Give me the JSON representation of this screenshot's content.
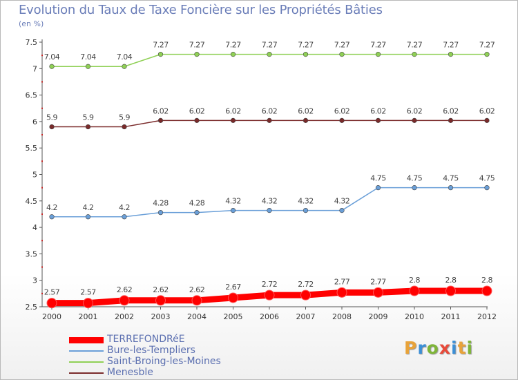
{
  "title": "Evolution du Taux de Taxe Foncière sur les Propriétés Bâties",
  "unit": "(en %)",
  "logo_text": "Proxiti",
  "logo_colors": [
    "#e8a33a",
    "#3b8fd6",
    "#7fb539",
    "#e84a3a",
    "#3b8fd6",
    "#e8a33a",
    "#7fb539"
  ],
  "chart_data": {
    "type": "line",
    "title": "Evolution du Taux de Taxe Foncière sur les Propriétés Bâties",
    "ylabel": "(en %)",
    "xlabel": "",
    "categories": [
      "2000",
      "2001",
      "2002",
      "2003",
      "2004",
      "2005",
      "2006",
      "2007",
      "2008",
      "2009",
      "2010",
      "2011",
      "2012"
    ],
    "ylim": [
      2.5,
      7.5
    ],
    "yticks": [
      "2.5",
      "3",
      "3.5",
      "4",
      "4.5",
      "5",
      "5.5",
      "6",
      "6.5",
      "7",
      "7.5"
    ],
    "grid": false,
    "series": [
      {
        "name": "TERREFONDRéE",
        "color": "#ff0000",
        "emphasis": true,
        "values": [
          2.57,
          2.57,
          2.62,
          2.62,
          2.62,
          2.67,
          2.72,
          2.72,
          2.77,
          2.77,
          2.8,
          2.8,
          2.8
        ],
        "labels": [
          "2.57",
          "2.57",
          "2.62",
          "2.62",
          "2.62",
          "2.67",
          "2.72",
          "2.72",
          "2.77",
          "2.77",
          "2.8",
          "2.8",
          "2.8"
        ]
      },
      {
        "name": "Bure-les-Templiers",
        "color": "#6a9fd8",
        "values": [
          4.2,
          4.2,
          4.2,
          4.28,
          4.28,
          4.32,
          4.32,
          4.32,
          4.32,
          4.75,
          4.75,
          4.75,
          4.75
        ],
        "labels": [
          "4.2",
          "4.2",
          "4.2",
          "4.28",
          "4.28",
          "4.32",
          "4.32",
          "4.32",
          "4.32",
          "4.75",
          "4.75",
          "4.75",
          "4.75"
        ]
      },
      {
        "name": "Saint-Broing-les-Moines",
        "color": "#8fd055",
        "values": [
          7.04,
          7.04,
          7.04,
          7.27,
          7.27,
          7.27,
          7.27,
          7.27,
          7.27,
          7.27,
          7.27,
          7.27,
          7.27
        ],
        "labels": [
          "7.04",
          "7.04",
          "7.04",
          "7.27",
          "7.27",
          "7.27",
          "7.27",
          "7.27",
          "7.27",
          "7.27",
          "7.27",
          "7.27",
          "7.27"
        ]
      },
      {
        "name": "Menesble",
        "color": "#7a2a2a",
        "values": [
          5.9,
          5.9,
          5.9,
          6.02,
          6.02,
          6.02,
          6.02,
          6.02,
          6.02,
          6.02,
          6.02,
          6.02,
          6.02
        ],
        "labels": [
          "5.9",
          "5.9",
          "5.9",
          "6.02",
          "6.02",
          "6.02",
          "6.02",
          "6.02",
          "6.02",
          "6.02",
          "6.02",
          "6.02",
          "6.02"
        ]
      }
    ],
    "legend_position": "bottom-left"
  }
}
